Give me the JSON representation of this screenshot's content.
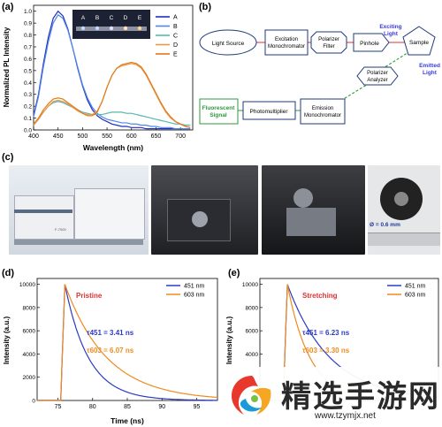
{
  "panels": {
    "a": {
      "label": "(a)",
      "chart_data": {
        "type": "line",
        "xlabel": "Wavelength (nm)",
        "ylabel": "Normalized PL Intensity",
        "xlim": [
          400,
          725
        ],
        "ylim": [
          0,
          1.05
        ],
        "xticks": [
          400,
          450,
          500,
          550,
          600,
          650,
          700
        ],
        "yticks": [
          0.0,
          0.1,
          0.2,
          0.3,
          0.4,
          0.5,
          0.6,
          0.7,
          0.8,
          0.9,
          1.0
        ],
        "legend_position": "top-right",
        "inset_labels": [
          "A",
          "B",
          "C",
          "D",
          "E"
        ],
        "x": [
          400,
          410,
          420,
          430,
          440,
          450,
          460,
          470,
          480,
          490,
          500,
          510,
          520,
          530,
          540,
          550,
          560,
          570,
          580,
          590,
          600,
          610,
          620,
          630,
          640,
          650,
          660,
          670,
          680,
          690,
          700,
          710,
          720
        ],
        "series": [
          {
            "name": "A",
            "color": "#1f2fbf",
            "values": [
              0.12,
              0.3,
              0.56,
              0.78,
              0.94,
              1.0,
              0.96,
              0.85,
              0.69,
              0.52,
              0.37,
              0.25,
              0.17,
              0.12,
              0.09,
              0.07,
              0.05,
              0.04,
              0.03,
              0.03,
              0.02,
              0.02,
              0.02,
              0.01,
              0.01,
              0.01,
              0.01,
              0.01,
              0.01,
              0.01,
              0.01,
              0.01,
              0.01
            ]
          },
          {
            "name": "B",
            "color": "#4f86e8",
            "values": [
              0.11,
              0.28,
              0.53,
              0.74,
              0.9,
              0.97,
              0.94,
              0.84,
              0.69,
              0.53,
              0.38,
              0.27,
              0.19,
              0.14,
              0.11,
              0.09,
              0.08,
              0.07,
              0.06,
              0.06,
              0.05,
              0.05,
              0.04,
              0.04,
              0.03,
              0.03,
              0.02,
              0.02,
              0.02,
              0.01,
              0.01,
              0.01,
              0.01
            ]
          },
          {
            "name": "C",
            "color": "#55b8b0",
            "values": [
              0.04,
              0.09,
              0.15,
              0.2,
              0.23,
              0.24,
              0.23,
              0.21,
              0.19,
              0.17,
              0.15,
              0.14,
              0.13,
              0.13,
              0.13,
              0.14,
              0.15,
              0.15,
              0.15,
              0.14,
              0.14,
              0.13,
              0.12,
              0.11,
              0.1,
              0.09,
              0.08,
              0.07,
              0.06,
              0.05,
              0.05,
              0.04,
              0.04
            ]
          },
          {
            "name": "D",
            "color": "#e89a4a",
            "values": [
              0.04,
              0.09,
              0.15,
              0.2,
              0.24,
              0.25,
              0.24,
              0.22,
              0.19,
              0.16,
              0.14,
              0.13,
              0.13,
              0.16,
              0.24,
              0.36,
              0.46,
              0.52,
              0.54,
              0.55,
              0.56,
              0.55,
              0.52,
              0.46,
              0.38,
              0.3,
              0.22,
              0.15,
              0.1,
              0.07,
              0.05,
              0.03,
              0.02
            ]
          },
          {
            "name": "E",
            "color": "#e37a1a",
            "values": [
              0.05,
              0.1,
              0.17,
              0.22,
              0.26,
              0.27,
              0.26,
              0.23,
              0.2,
              0.17,
              0.14,
              0.12,
              0.12,
              0.15,
              0.24,
              0.36,
              0.46,
              0.52,
              0.55,
              0.56,
              0.57,
              0.56,
              0.53,
              0.47,
              0.39,
              0.31,
              0.23,
              0.16,
              0.11,
              0.07,
              0.05,
              0.03,
              0.02
            ]
          }
        ]
      }
    },
    "b": {
      "label": "(b)",
      "nodes": {
        "light_source": "Light Source",
        "excitation": "Excitation Monochromator",
        "polarizer_filter": "Polarizer Filter",
        "pinhole": "Pinhole",
        "sample": "Sample",
        "polarizer_analyzer": "Polarizer Analyzer",
        "emission": "Emission Monochromator",
        "photomultiplier": "Photomultiplier",
        "fluorescent_signal": "Fluorescent Signal"
      },
      "annotations": {
        "exciting_light": "Exciting Light",
        "emitted_light": "Emitted Light"
      }
    },
    "c": {
      "label": "(c)",
      "instrument_label": "F-7000",
      "diameter_label": "Ø = 0.6 mm"
    },
    "d": {
      "label": "(d)",
      "title": "Pristine",
      "tau1": "τ451 = 3.41 ns",
      "tau2": "τ603 = 6.07 ns",
      "chart_data": {
        "type": "line",
        "xlabel": "Time (ns)",
        "ylabel": "Intensity (a.u.)",
        "xlim": [
          72,
          98
        ],
        "ylim": [
          0,
          10500
        ],
        "xticks": [
          75,
          80,
          85,
          90,
          95
        ],
        "yticks": [
          0,
          2000,
          4000,
          6000,
          8000,
          10000
        ],
        "legend_position": "top-right",
        "series": [
          {
            "name": "451 nm",
            "color": "#2b3bc4",
            "tau": 3.41,
            "peak_x": 76,
            "peak_y": 10000
          },
          {
            "name": "603 nm",
            "color": "#f08a1e",
            "tau": 6.07,
            "peak_x": 76,
            "peak_y": 10000
          }
        ]
      }
    },
    "e": {
      "label": "(e)",
      "title": "Stretching",
      "tau1": "τ451 = 6.23 ns",
      "tau2": "τ603 = 3.30 ns",
      "chart_data": {
        "type": "line",
        "ylabel": "Intensity (a.u.)",
        "ylim": [
          0,
          10500
        ],
        "yticks": [
          4000,
          6000,
          8000,
          10000
        ],
        "legend_position": "top-right",
        "series": [
          {
            "name": "451 nm",
            "color": "#2b3bc4",
            "tau": 6.23,
            "peak_x": 76,
            "peak_y": 10000
          },
          {
            "name": "603 nm",
            "color": "#f08a1e",
            "tau": 3.3,
            "peak_x": 76,
            "peak_y": 10000
          }
        ]
      }
    }
  },
  "watermark": {
    "text": "精选手游网",
    "url": "www.tzymjx.net"
  }
}
